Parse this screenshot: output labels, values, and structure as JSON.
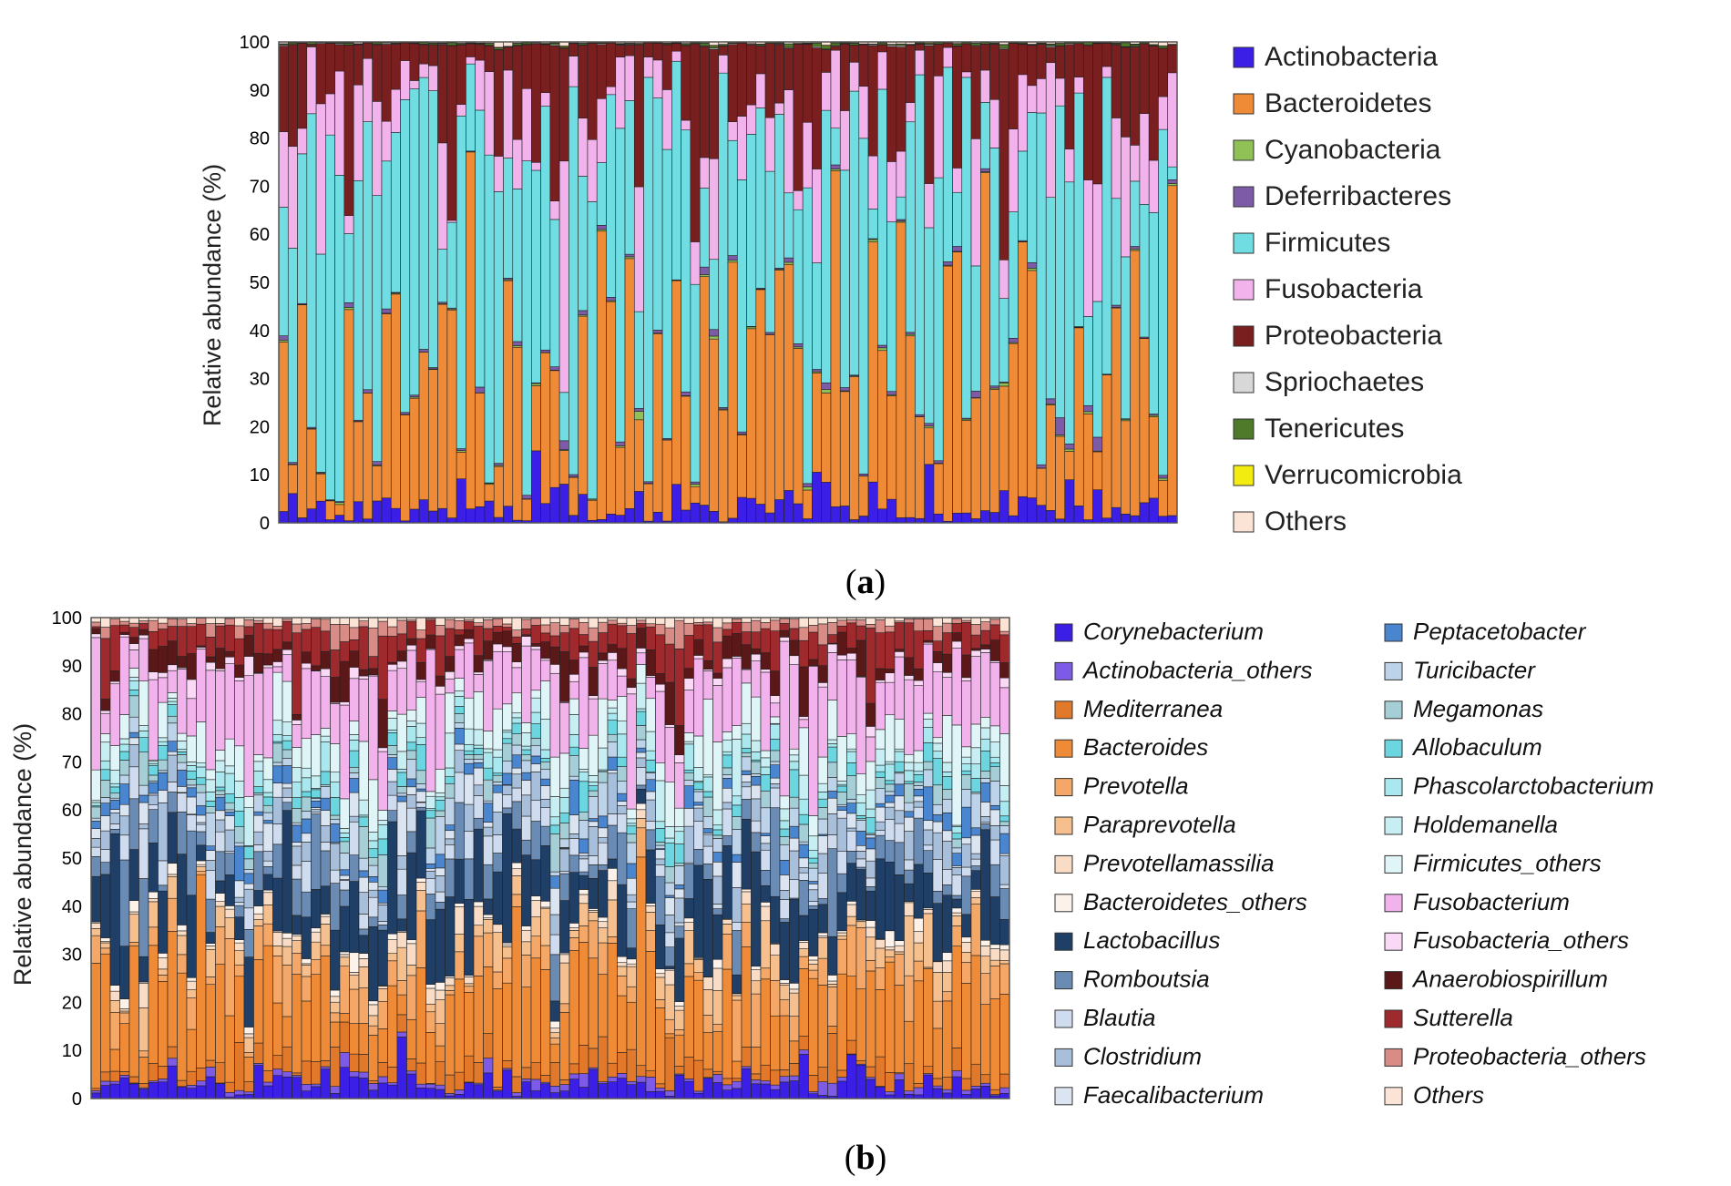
{
  "panels": [
    {
      "label_open": "(",
      "label_letter": "a",
      "label_close": ")"
    },
    {
      "label_open": "(",
      "label_letter": "b",
      "label_close": ")"
    }
  ],
  "chart_data": [
    {
      "id": "a",
      "type": "bar",
      "stacked": true,
      "title": "",
      "xlabel": "",
      "ylabel": "Relative abundance (%)",
      "ylim": [
        0,
        100
      ],
      "yticks": [
        0,
        10,
        20,
        30,
        40,
        50,
        60,
        70,
        80,
        90,
        100
      ],
      "legend_position": "right",
      "n_samples": 96,
      "series": [
        {
          "name": "Actinobacteria",
          "color": "#3b1fe6",
          "mean": 3
        },
        {
          "name": "Bacteroidetes",
          "color": "#ef8a36",
          "mean": 27
        },
        {
          "name": "Cyanobacteria",
          "color": "#8fc157",
          "mean": 0.2
        },
        {
          "name": "Deferribacteres",
          "color": "#7d5ba6",
          "mean": 0.5
        },
        {
          "name": "Firmicutes",
          "color": "#6fdde2",
          "mean": 46
        },
        {
          "name": "Fusobacteria",
          "color": "#f2b3ec",
          "mean": 11
        },
        {
          "name": "Proteobacteria",
          "color": "#7a1f1f",
          "mean": 11
        },
        {
          "name": "Spriochaetes",
          "color": "#d8d8d8",
          "mean": 0.1
        },
        {
          "name": "Tenericutes",
          "color": "#4f7a2a",
          "mean": 0.2
        },
        {
          "name": "Verrucomicrobia",
          "color": "#f2ec11",
          "mean": 0.05
        },
        {
          "name": "Others",
          "color": "#fbe3d6",
          "mean": 0.2
        }
      ]
    },
    {
      "id": "b",
      "type": "bar",
      "stacked": true,
      "title": "",
      "xlabel": "",
      "ylabel": "Relative abundance (%)",
      "ylim": [
        0,
        100
      ],
      "yticks": [
        0,
        10,
        20,
        30,
        40,
        50,
        60,
        70,
        80,
        90,
        100
      ],
      "legend_position": "right",
      "n_samples": 96,
      "series": [
        {
          "name": "Corynebacterium",
          "color": "#3b1fe6",
          "mean": 2.5
        },
        {
          "name": "Actinobacteria_others",
          "color": "#7d5be6",
          "mean": 0.8
        },
        {
          "name": "Mediterranea",
          "color": "#e1782a",
          "mean": 3
        },
        {
          "name": "Bacteroides",
          "color": "#ef8a36",
          "mean": 14
        },
        {
          "name": "Prevotella",
          "color": "#f4a766",
          "mean": 5
        },
        {
          "name": "Paraprevotella",
          "color": "#f6bf8e",
          "mean": 3
        },
        {
          "name": "Prevotellamassilia",
          "color": "#f9dcc5",
          "mean": 1.5
        },
        {
          "name": "Bacteroidetes_others",
          "color": "#fdf2ea",
          "mean": 0.8
        },
        {
          "name": "Lactobacillus",
          "color": "#1f3f66",
          "mean": 10
        },
        {
          "name": "Romboutsia",
          "color": "#6a8bb3",
          "mean": 5
        },
        {
          "name": "Blautia",
          "color": "#cfdcef",
          "mean": 3
        },
        {
          "name": "Clostridium",
          "color": "#a8bfdc",
          "mean": 3
        },
        {
          "name": "Faecalibacterium",
          "color": "#dbe5f2",
          "mean": 2
        },
        {
          "name": "Peptacetobacter",
          "color": "#4a86cf",
          "mean": 2
        },
        {
          "name": "Turicibacter",
          "color": "#bcd3ea",
          "mean": 2
        },
        {
          "name": "Megamonas",
          "color": "#a6ced6",
          "mean": 2
        },
        {
          "name": "Allobaculum",
          "color": "#6cd6e0",
          "mean": 2
        },
        {
          "name": "Phascolarctobacterium",
          "color": "#a9e8ee",
          "mean": 2
        },
        {
          "name": "Holdemanella",
          "color": "#c7eff3",
          "mean": 2
        },
        {
          "name": "Firmicutes_others",
          "color": "#dff5f7",
          "mean": 6
        },
        {
          "name": "Fusobacterium",
          "color": "#f2b3ec",
          "mean": 10
        },
        {
          "name": "Fusobacteria_others",
          "color": "#fad9f6",
          "mean": 1
        },
        {
          "name": "Anaerobiospirillum",
          "color": "#5a1818",
          "mean": 3
        },
        {
          "name": "Sutterella",
          "color": "#9e2a2e",
          "mean": 4
        },
        {
          "name": "Proteobacteria_others",
          "color": "#d98c86",
          "mean": 1.5
        },
        {
          "name": "Others",
          "color": "#fbe3d6",
          "mean": 1
        }
      ]
    }
  ]
}
